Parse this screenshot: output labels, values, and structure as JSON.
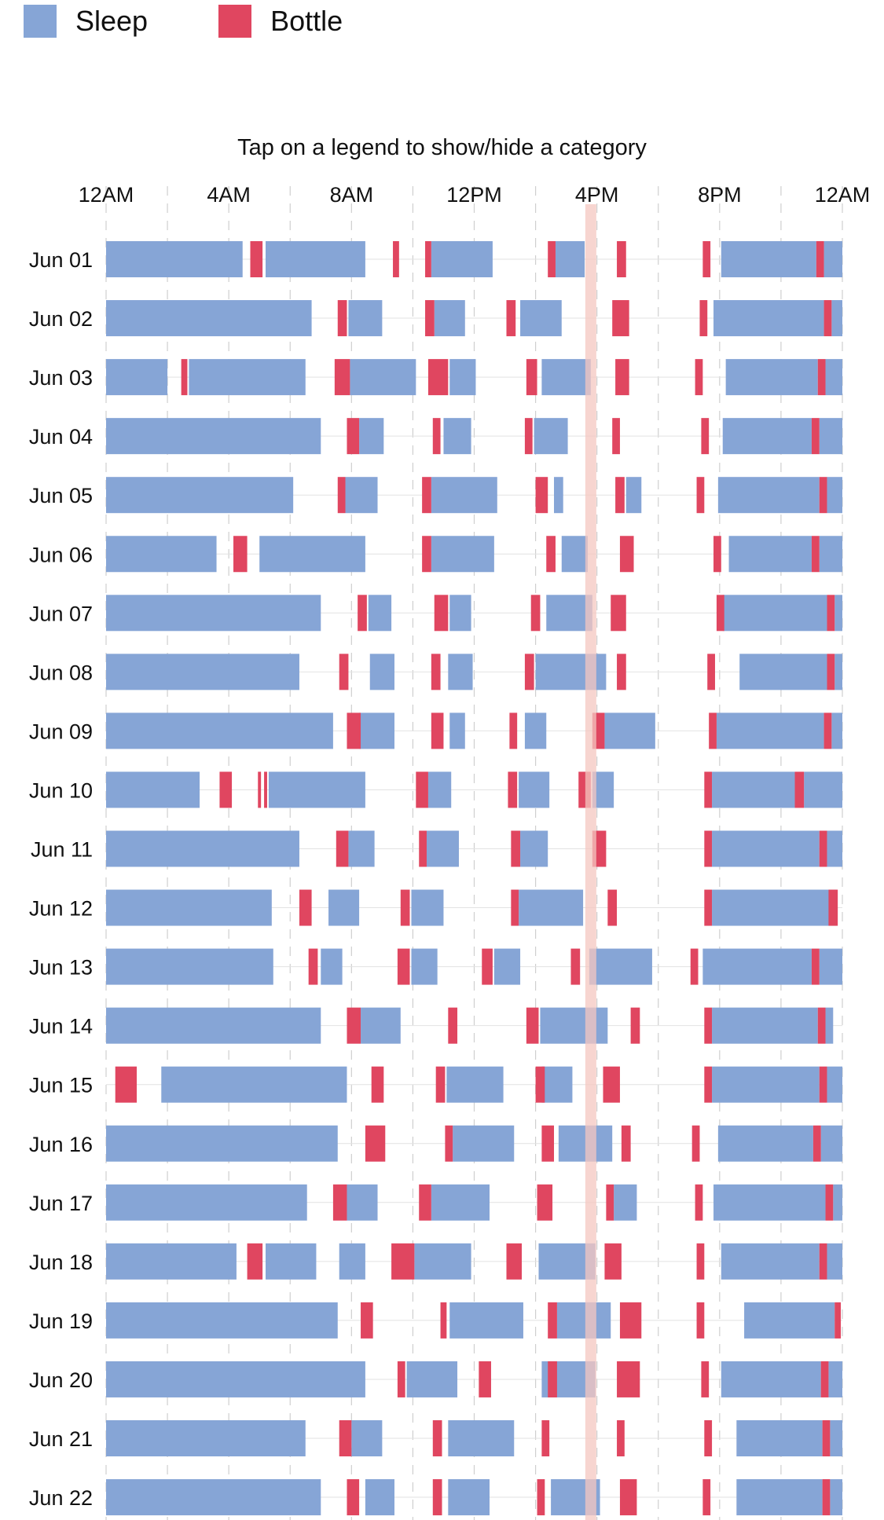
{
  "legend": [
    {
      "label": "Sleep",
      "color": "#86a5d6"
    },
    {
      "label": "Bottle",
      "color": "#e04660"
    }
  ],
  "hint": "Tap on a legend to show/hide a category",
  "chart_data": {
    "type": "timeline",
    "x_unit": "hours after midnight",
    "xlim": [
      0,
      24
    ],
    "x_ticks": [
      {
        "value": 0,
        "label": "12AM"
      },
      {
        "value": 4,
        "label": "4AM"
      },
      {
        "value": 8,
        "label": "8AM"
      },
      {
        "value": 12,
        "label": "12PM"
      },
      {
        "value": 16,
        "label": "4PM"
      },
      {
        "value": 20,
        "label": "8PM"
      },
      {
        "value": 24,
        "label": "12AM"
      }
    ],
    "highlight_hour": 15.8,
    "highlight_color": "#f4c7c0",
    "rows": [
      {
        "label": "Jun 01",
        "sleep": [
          [
            0,
            4.45
          ],
          [
            5.2,
            8.45
          ],
          [
            10.6,
            12.6
          ],
          [
            14.65,
            15.6
          ],
          [
            20.05,
            23.15
          ],
          [
            23.4,
            24
          ]
        ],
        "bottle": [
          [
            4.7,
            5.1
          ],
          [
            9.35,
            9.55
          ],
          [
            10.4,
            10.6
          ],
          [
            14.4,
            14.65
          ],
          [
            16.65,
            16.95
          ],
          [
            19.45,
            19.7
          ],
          [
            23.15,
            23.4
          ]
        ]
      },
      {
        "label": "Jun 02",
        "sleep": [
          [
            0,
            6.7
          ],
          [
            7.9,
            9.0
          ],
          [
            10.7,
            11.7
          ],
          [
            13.5,
            14.85
          ],
          [
            19.8,
            23.4
          ],
          [
            23.65,
            24
          ]
        ],
        "bottle": [
          [
            7.55,
            7.85
          ],
          [
            10.4,
            10.7
          ],
          [
            13.05,
            13.35
          ],
          [
            16.5,
            17.05
          ],
          [
            19.35,
            19.6
          ],
          [
            23.4,
            23.65
          ]
        ]
      },
      {
        "label": "Jun 03",
        "sleep": [
          [
            0,
            2.0
          ],
          [
            2.7,
            6.5
          ],
          [
            7.95,
            10.1
          ],
          [
            11.2,
            12.05
          ],
          [
            14.2,
            15.8
          ],
          [
            20.2,
            23.2
          ],
          [
            23.45,
            24
          ]
        ],
        "bottle": [
          [
            2.45,
            2.65
          ],
          [
            7.45,
            7.95
          ],
          [
            10.5,
            11.15
          ],
          [
            13.7,
            14.05
          ],
          [
            16.6,
            17.05
          ],
          [
            19.2,
            19.45
          ],
          [
            23.2,
            23.45
          ]
        ]
      },
      {
        "label": "Jun 04",
        "sleep": [
          [
            0,
            7.0
          ],
          [
            8.25,
            9.05
          ],
          [
            11.0,
            11.9
          ],
          [
            13.95,
            15.05
          ],
          [
            20.1,
            23.0
          ],
          [
            23.25,
            24
          ]
        ],
        "bottle": [
          [
            7.85,
            8.25
          ],
          [
            10.65,
            10.9
          ],
          [
            13.65,
            13.9
          ],
          [
            16.5,
            16.75
          ],
          [
            19.4,
            19.65
          ],
          [
            23.0,
            23.25
          ]
        ]
      },
      {
        "label": "Jun 05",
        "sleep": [
          [
            0,
            6.1
          ],
          [
            7.8,
            8.85
          ],
          [
            10.6,
            12.75
          ],
          [
            14.6,
            14.9
          ],
          [
            16.95,
            17.45
          ],
          [
            19.95,
            23.25
          ],
          [
            23.5,
            24
          ]
        ],
        "bottle": [
          [
            7.55,
            7.8
          ],
          [
            10.3,
            10.6
          ],
          [
            14.0,
            14.4
          ],
          [
            16.6,
            16.9
          ],
          [
            19.25,
            19.5
          ],
          [
            23.25,
            23.5
          ]
        ]
      },
      {
        "label": "Jun 06",
        "sleep": [
          [
            0,
            3.6
          ],
          [
            5.0,
            8.45
          ],
          [
            10.6,
            12.65
          ],
          [
            14.85,
            15.7
          ],
          [
            20.3,
            23.0
          ],
          [
            23.25,
            24
          ]
        ],
        "bottle": [
          [
            4.15,
            4.6
          ],
          [
            10.3,
            10.6
          ],
          [
            14.35,
            14.65
          ],
          [
            16.75,
            17.2
          ],
          [
            19.8,
            20.05
          ],
          [
            23.0,
            23.25
          ]
        ]
      },
      {
        "label": "Jun 07",
        "sleep": [
          [
            0,
            7.0
          ],
          [
            8.55,
            9.3
          ],
          [
            11.2,
            11.9
          ],
          [
            14.35,
            15.85
          ],
          [
            20.1,
            23.5
          ],
          [
            23.75,
            24
          ]
        ],
        "bottle": [
          [
            8.2,
            8.5
          ],
          [
            10.7,
            11.15
          ],
          [
            13.85,
            14.15
          ],
          [
            16.45,
            16.95
          ],
          [
            19.9,
            20.15
          ],
          [
            23.5,
            23.75
          ]
        ]
      },
      {
        "label": "Jun 08",
        "sleep": [
          [
            0,
            6.3
          ],
          [
            8.6,
            9.4
          ],
          [
            11.15,
            11.95
          ],
          [
            14.0,
            16.3
          ],
          [
            20.65,
            23.5
          ],
          [
            23.75,
            24
          ]
        ],
        "bottle": [
          [
            7.6,
            7.9
          ],
          [
            10.6,
            10.9
          ],
          [
            13.65,
            13.95
          ],
          [
            16.65,
            16.95
          ],
          [
            19.6,
            19.85
          ],
          [
            23.5,
            23.75
          ]
        ]
      },
      {
        "label": "Jun 09",
        "sleep": [
          [
            0,
            7.4
          ],
          [
            8.25,
            9.4
          ],
          [
            11.2,
            11.7
          ],
          [
            13.65,
            14.35
          ],
          [
            16.25,
            17.9
          ],
          [
            19.9,
            23.4
          ],
          [
            23.65,
            24
          ]
        ],
        "bottle": [
          [
            7.85,
            8.3
          ],
          [
            10.6,
            11.0
          ],
          [
            13.15,
            13.4
          ],
          [
            15.85,
            16.25
          ],
          [
            19.65,
            19.9
          ],
          [
            23.4,
            23.65
          ]
        ]
      },
      {
        "label": "Jun 10",
        "sleep": [
          [
            0,
            3.05
          ],
          [
            5.3,
            8.45
          ],
          [
            10.5,
            11.25
          ],
          [
            13.45,
            14.45
          ],
          [
            15.85,
            16.55
          ],
          [
            19.75,
            22.45
          ],
          [
            22.75,
            24
          ]
        ],
        "bottle": [
          [
            3.7,
            4.1
          ],
          [
            4.95,
            5.05
          ],
          [
            5.15,
            5.25
          ],
          [
            10.1,
            10.5
          ],
          [
            13.1,
            13.4
          ],
          [
            15.4,
            15.8
          ],
          [
            19.5,
            19.75
          ],
          [
            22.45,
            22.75
          ]
        ]
      },
      {
        "label": "Jun 11",
        "sleep": [
          [
            0,
            6.3
          ],
          [
            7.9,
            8.75
          ],
          [
            10.45,
            11.5
          ],
          [
            13.5,
            14.4
          ],
          [
            19.75,
            23.25
          ],
          [
            23.5,
            24
          ]
        ],
        "bottle": [
          [
            7.5,
            7.9
          ],
          [
            10.2,
            10.45
          ],
          [
            13.2,
            13.5
          ],
          [
            15.85,
            16.3
          ],
          [
            19.5,
            19.75
          ],
          [
            23.25,
            23.5
          ]
        ]
      },
      {
        "label": "Jun 12",
        "sleep": [
          [
            0,
            5.4
          ],
          [
            7.25,
            8.25
          ],
          [
            9.95,
            11.0
          ],
          [
            13.45,
            15.55
          ],
          [
            19.75,
            23.8
          ],
          [
            24.0,
            24.0
          ]
        ],
        "bottle": [
          [
            6.3,
            6.7
          ],
          [
            9.6,
            9.9
          ],
          [
            13.2,
            13.45
          ],
          [
            16.35,
            16.65
          ],
          [
            19.5,
            19.75
          ],
          [
            23.55,
            23.85
          ]
        ]
      },
      {
        "label": "Jun 13",
        "sleep": [
          [
            0,
            5.45
          ],
          [
            7.0,
            7.7
          ],
          [
            9.95,
            10.8
          ],
          [
            12.65,
            13.5
          ],
          [
            15.75,
            17.8
          ],
          [
            19.45,
            23.0
          ],
          [
            23.25,
            24
          ]
        ],
        "bottle": [
          [
            6.6,
            6.9
          ],
          [
            9.5,
            9.9
          ],
          [
            12.25,
            12.6
          ],
          [
            15.15,
            15.45
          ],
          [
            19.05,
            19.3
          ],
          [
            23.0,
            23.25
          ]
        ]
      },
      {
        "label": "Jun 14",
        "sleep": [
          [
            0,
            7.0
          ],
          [
            8.3,
            9.6
          ],
          [
            14.15,
            16.35
          ],
          [
            19.75,
            23.2
          ],
          [
            23.45,
            23.7
          ]
        ],
        "bottle": [
          [
            7.85,
            8.3
          ],
          [
            11.15,
            11.45
          ],
          [
            13.7,
            14.1
          ],
          [
            17.1,
            17.4
          ],
          [
            19.5,
            19.75
          ],
          [
            23.2,
            23.45
          ]
        ]
      },
      {
        "label": "Jun 15",
        "sleep": [
          [
            1.8,
            7.85
          ],
          [
            11.1,
            12.95
          ],
          [
            14.2,
            15.2
          ],
          [
            19.75,
            23.25
          ],
          [
            23.5,
            24
          ]
        ],
        "bottle": [
          [
            0.3,
            1.0
          ],
          [
            8.65,
            9.05
          ],
          [
            10.75,
            11.05
          ],
          [
            14.0,
            14.3
          ],
          [
            16.2,
            16.75
          ],
          [
            19.5,
            19.75
          ],
          [
            23.25,
            23.5
          ]
        ]
      },
      {
        "label": "Jun 16",
        "sleep": [
          [
            0,
            7.55
          ],
          [
            11.3,
            13.3
          ],
          [
            14.75,
            16.5
          ],
          [
            19.95,
            23.05
          ],
          [
            23.3,
            24
          ]
        ],
        "bottle": [
          [
            8.45,
            9.1
          ],
          [
            11.05,
            11.3
          ],
          [
            14.2,
            14.6
          ],
          [
            16.8,
            17.1
          ],
          [
            19.1,
            19.35
          ],
          [
            23.05,
            23.3
          ]
        ]
      },
      {
        "label": "Jun 17",
        "sleep": [
          [
            0,
            6.55
          ],
          [
            7.85,
            8.85
          ],
          [
            10.6,
            12.5
          ],
          [
            16.55,
            17.3
          ],
          [
            19.8,
            23.45
          ],
          [
            23.7,
            24
          ]
        ],
        "bottle": [
          [
            7.4,
            7.85
          ],
          [
            10.2,
            10.6
          ],
          [
            14.05,
            14.55
          ],
          [
            16.3,
            16.55
          ],
          [
            19.2,
            19.45
          ],
          [
            23.45,
            23.7
          ]
        ]
      },
      {
        "label": "Jun 18",
        "sleep": [
          [
            0,
            4.25
          ],
          [
            5.2,
            6.85
          ],
          [
            7.6,
            8.45
          ],
          [
            10.05,
            11.9
          ],
          [
            14.1,
            15.95
          ],
          [
            20.05,
            23.25
          ],
          [
            23.5,
            24
          ]
        ],
        "bottle": [
          [
            4.6,
            5.1
          ],
          [
            9.3,
            10.05
          ],
          [
            13.05,
            13.55
          ],
          [
            16.25,
            16.8
          ],
          [
            19.25,
            19.5
          ],
          [
            23.25,
            23.5
          ]
        ]
      },
      {
        "label": "Jun 19",
        "sleep": [
          [
            0,
            7.55
          ],
          [
            11.2,
            13.6
          ],
          [
            14.7,
            16.45
          ],
          [
            20.8,
            23.75
          ],
          [
            24.0,
            24.0
          ]
        ],
        "bottle": [
          [
            8.3,
            8.7
          ],
          [
            10.9,
            11.1
          ],
          [
            14.4,
            14.7
          ],
          [
            16.75,
            17.45
          ],
          [
            19.25,
            19.5
          ],
          [
            23.75,
            23.95
          ]
        ]
      },
      {
        "label": "Jun 20",
        "sleep": [
          [
            0,
            8.45
          ],
          [
            9.8,
            11.45
          ],
          [
            14.2,
            15.95
          ],
          [
            20.05,
            23.3
          ],
          [
            23.55,
            24
          ]
        ],
        "bottle": [
          [
            9.5,
            9.75
          ],
          [
            12.15,
            12.55
          ],
          [
            14.4,
            14.7
          ],
          [
            16.65,
            17.4
          ],
          [
            19.4,
            19.65
          ],
          [
            23.3,
            23.55
          ]
        ]
      },
      {
        "label": "Jun 21",
        "sleep": [
          [
            0,
            6.5
          ],
          [
            8.0,
            9.0
          ],
          [
            11.15,
            13.3
          ],
          [
            20.55,
            23.35
          ],
          [
            23.6,
            24
          ]
        ],
        "bottle": [
          [
            7.6,
            8.0
          ],
          [
            10.65,
            10.95
          ],
          [
            14.2,
            14.45
          ],
          [
            16.65,
            16.9
          ],
          [
            19.5,
            19.75
          ],
          [
            23.35,
            23.6
          ]
        ]
      },
      {
        "label": "Jun 22",
        "sleep": [
          [
            0,
            7.0
          ],
          [
            8.45,
            9.4
          ],
          [
            11.15,
            12.5
          ],
          [
            14.5,
            16.1
          ],
          [
            20.55,
            23.35
          ],
          [
            23.6,
            24
          ]
        ],
        "bottle": [
          [
            7.85,
            8.25
          ],
          [
            10.65,
            10.95
          ],
          [
            14.05,
            14.3
          ],
          [
            16.75,
            17.3
          ],
          [
            19.45,
            19.7
          ],
          [
            23.35,
            23.6
          ]
        ]
      }
    ]
  }
}
